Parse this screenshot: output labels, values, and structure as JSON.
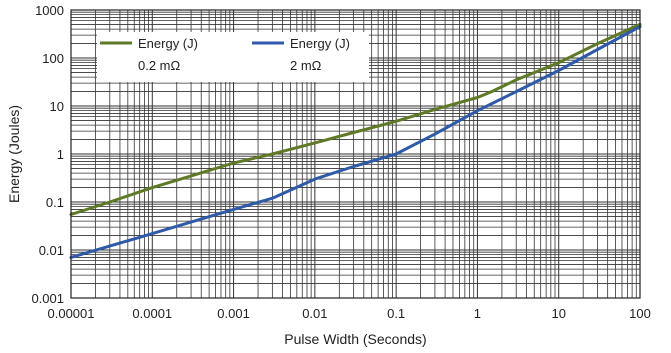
{
  "chart_data": {
    "type": "line",
    "xlabel": "Pulse Width (Seconds)",
    "ylabel": "Energy (Joules)",
    "x_scale": "log",
    "y_scale": "log",
    "xlim": [
      1e-05,
      100
    ],
    "ylim": [
      0.001,
      1000
    ],
    "x_ticks": [
      1e-05,
      0.0001,
      0.001,
      0.01,
      0.1,
      1,
      10,
      100
    ],
    "x_tick_labels": [
      "0.00001",
      "0.0001",
      "0.001",
      "0.01",
      "0.1",
      "1",
      "10",
      "100"
    ],
    "y_ticks": [
      0.001,
      0.01,
      0.1,
      1,
      10,
      100,
      1000
    ],
    "y_tick_labels": [
      "0.001",
      "0.01",
      "0.1",
      "1",
      "10",
      "100",
      "1000"
    ],
    "grid": true,
    "legend": {
      "placement": "top-left",
      "entries": [
        {
          "line1": "Energy (J)",
          "line2": "0.2 mΩ"
        },
        {
          "line1": "Energy (J)",
          "line2": "2 mΩ"
        }
      ]
    },
    "series": [
      {
        "name": "Energy (J) 0.2 mΩ",
        "color": "#5e7a26",
        "x": [
          1e-05,
          3e-05,
          0.0001,
          0.0003,
          0.001,
          0.003,
          0.01,
          0.03,
          0.1,
          0.3,
          1,
          1.5,
          3,
          10,
          30,
          100
        ],
        "y": [
          0.055,
          0.1,
          0.2,
          0.35,
          0.65,
          1.0,
          1.7,
          2.8,
          4.8,
          8.5,
          15,
          20,
          35,
          80,
          200,
          500
        ]
      },
      {
        "name": "Energy (J) 2 mΩ",
        "color": "#2e5aa8",
        "x": [
          1e-05,
          0.0001,
          0.001,
          0.003,
          0.01,
          0.03,
          0.1,
          0.3,
          1,
          3,
          10,
          30,
          100
        ],
        "y": [
          0.007,
          0.022,
          0.07,
          0.12,
          0.3,
          0.55,
          1.0,
          2.6,
          8,
          20,
          55,
          150,
          450
        ]
      }
    ]
  }
}
